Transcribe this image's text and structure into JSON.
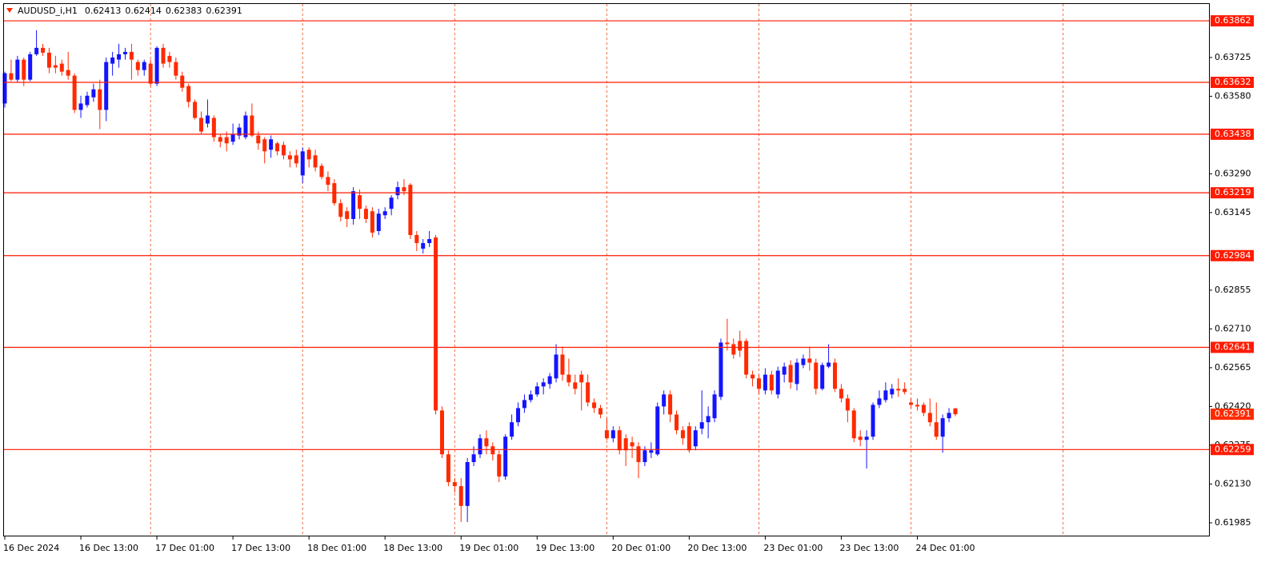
{
  "chart_data": {
    "type": "candlestick",
    "title": "AUDUSD_i,H1",
    "up_color": "#1414ff",
    "down_color": "#ff2a00",
    "level_color": "#ff1a00",
    "grid_color": "#ef6c3c",
    "grid": true,
    "ylim": [
      0.61937,
      0.63925
    ],
    "yticks": [
      0.63725,
      {
        "value": 0.6358,
        "label": "0.63580"
      },
      {
        "value": 0.6329,
        "label": "0.63290"
      },
      0.63145,
      0.62855,
      {
        "value": 0.6271,
        "label": "0.62710"
      },
      0.62565,
      {
        "value": 0.6242,
        "label": "0.62420"
      },
      0.62275,
      {
        "value": 0.6213,
        "label": "0.62130"
      },
      0.61985
    ],
    "levels": [
      0.63862,
      0.63632,
      0.63438,
      0.63219,
      0.62984,
      0.62641,
      0.62259
    ],
    "categories": [
      "16 Dec 2024",
      null,
      null,
      null,
      null,
      null,
      null,
      null,
      null,
      null,
      null,
      null,
      "16 Dec 13:00",
      null,
      null,
      null,
      null,
      null,
      null,
      null,
      null,
      null,
      null,
      null,
      "17 Dec 01:00",
      null,
      null,
      null,
      null,
      null,
      null,
      null,
      null,
      null,
      null,
      null,
      "17 Dec 13:00",
      null,
      null,
      null,
      null,
      null,
      null,
      null,
      null,
      null,
      null,
      null,
      "18 Dec 01:00",
      null,
      null,
      null,
      null,
      null,
      null,
      null,
      null,
      null,
      null,
      null,
      "18 Dec 13:00",
      null,
      null,
      null,
      null,
      null,
      null,
      null,
      null,
      null,
      null,
      null,
      "19 Dec 01:00",
      null,
      null,
      null,
      null,
      null,
      null,
      null,
      null,
      null,
      null,
      null,
      "19 Dec 13:00",
      null,
      null,
      null,
      null,
      null,
      null,
      null,
      null,
      null,
      null,
      null,
      "20 Dec 01:00",
      null,
      null,
      null,
      null,
      null,
      null,
      null,
      null,
      null,
      null,
      null,
      "20 Dec 13:00",
      null,
      null,
      null,
      null,
      null,
      null,
      null,
      null,
      null,
      null,
      null,
      "23 Dec 01:00",
      null,
      null,
      null,
      null,
      null,
      null,
      null,
      null,
      null,
      null,
      null,
      "23 Dec 13:00",
      null,
      null,
      null,
      null,
      null,
      null,
      null,
      null,
      null,
      null,
      null,
      "24 Dec 01:00",
      null,
      null,
      null,
      null,
      null,
      null
    ],
    "ohlc": [
      [
        0.63553,
        0.63672,
        0.63538,
        0.63666
      ],
      [
        0.63666,
        0.63717,
        0.63636,
        0.63642
      ],
      [
        0.63642,
        0.63731,
        0.63633,
        0.63717
      ],
      [
        0.63717,
        0.63725,
        0.63618,
        0.63642
      ],
      [
        0.63642,
        0.63746,
        0.63636,
        0.63737
      ],
      [
        0.63737,
        0.63827,
        0.63731,
        0.63761
      ],
      [
        0.63761,
        0.63776,
        0.63731,
        0.63743
      ],
      [
        0.63743,
        0.63761,
        0.63666,
        0.63687
      ],
      [
        0.63696,
        0.63731,
        0.63666,
        0.63687
      ],
      [
        0.63702,
        0.63717,
        0.63657,
        0.63672
      ],
      [
        0.63678,
        0.63746,
        0.63642,
        0.63657
      ],
      [
        0.63657,
        0.63666,
        0.63517,
        0.63529
      ],
      [
        0.63529,
        0.63582,
        0.63499,
        0.63553
      ],
      [
        0.63547,
        0.63597,
        0.63538,
        0.63582
      ],
      [
        0.63576,
        0.63627,
        0.63559,
        0.63606
      ],
      [
        0.63606,
        0.63642,
        0.63457,
        0.63529
      ],
      [
        0.63529,
        0.63725,
        0.63487,
        0.63708
      ],
      [
        0.63702,
        0.63746,
        0.63657,
        0.63725
      ],
      [
        0.63717,
        0.63776,
        0.63687,
        0.63737
      ],
      [
        0.63737,
        0.63761,
        0.63717,
        0.63746
      ],
      [
        0.63746,
        0.63776,
        0.63642,
        0.63717
      ],
      [
        0.63708,
        0.63717,
        0.63657,
        0.63678
      ],
      [
        0.63678,
        0.63717,
        0.63657,
        0.63708
      ],
      [
        0.63702,
        0.63717,
        0.63618,
        0.63627
      ],
      [
        0.63627,
        0.63767,
        0.63618,
        0.63761
      ],
      [
        0.63761,
        0.63776,
        0.63687,
        0.63702
      ],
      [
        0.63731,
        0.63746,
        0.63687,
        0.63708
      ],
      [
        0.63708,
        0.63725,
        0.63642,
        0.63657
      ],
      [
        0.63657,
        0.63672,
        0.63597,
        0.63612
      ],
      [
        0.63618,
        0.63627,
        0.63538,
        0.63559
      ],
      [
        0.63559,
        0.63568,
        0.63493,
        0.63499
      ],
      [
        0.63499,
        0.63523,
        0.63439,
        0.63448
      ],
      [
        0.63478,
        0.63568,
        0.63463,
        0.63508
      ],
      [
        0.63499,
        0.63508,
        0.6341,
        0.63427
      ],
      [
        0.63427,
        0.63439,
        0.63389,
        0.6341
      ],
      [
        0.63427,
        0.63448,
        0.63374,
        0.63404
      ],
      [
        0.6341,
        0.63478,
        0.63398,
        0.63439
      ],
      [
        0.63433,
        0.63478,
        0.63419,
        0.63463
      ],
      [
        0.63427,
        0.63523,
        0.63419,
        0.63508
      ],
      [
        0.63508,
        0.63553,
        0.63427,
        0.63433
      ],
      [
        0.63433,
        0.63448,
        0.6338,
        0.63404
      ],
      [
        0.63419,
        0.63427,
        0.63329,
        0.63374
      ],
      [
        0.6338,
        0.63433,
        0.6335,
        0.63419
      ],
      [
        0.63404,
        0.6341,
        0.63359,
        0.63374
      ],
      [
        0.63398,
        0.6341,
        0.63344,
        0.63359
      ],
      [
        0.63359,
        0.63374,
        0.63314,
        0.63344
      ],
      [
        0.63359,
        0.6338,
        0.63314,
        0.63329
      ],
      [
        0.63284,
        0.63389,
        0.63255,
        0.63374
      ],
      [
        0.6338,
        0.63389,
        0.63314,
        0.63344
      ],
      [
        0.63359,
        0.6338,
        0.63299,
        0.63314
      ],
      [
        0.6332,
        0.63329,
        0.6327,
        0.63278
      ],
      [
        0.63278,
        0.63299,
        0.63225,
        0.63249
      ],
      [
        0.63255,
        0.6327,
        0.63171,
        0.6318
      ],
      [
        0.6318,
        0.63195,
        0.63112,
        0.63129
      ],
      [
        0.6315,
        0.63165,
        0.63091,
        0.63121
      ],
      [
        0.63121,
        0.6324,
        0.631,
        0.63225
      ],
      [
        0.6321,
        0.63231,
        0.63121,
        0.63159
      ],
      [
        0.63159,
        0.63171,
        0.63106,
        0.63121
      ],
      [
        0.6315,
        0.63165,
        0.63052,
        0.6307
      ],
      [
        0.63076,
        0.63159,
        0.63061,
        0.63141
      ],
      [
        0.63135,
        0.63165,
        0.63121,
        0.6315
      ],
      [
        0.63159,
        0.6321,
        0.63135,
        0.63201
      ],
      [
        0.6321,
        0.63261,
        0.63195,
        0.6324
      ],
      [
        0.6324,
        0.6327,
        0.6321,
        0.63225
      ],
      [
        0.63249,
        0.63255,
        0.63046,
        0.63061
      ],
      [
        0.63061,
        0.63076,
        0.63001,
        0.63031
      ],
      [
        0.6301,
        0.63046,
        0.62992,
        0.63031
      ],
      [
        0.63031,
        0.63076,
        0.63016,
        0.63046
      ],
      [
        0.63052,
        0.63061,
        0.6239,
        0.62405
      ],
      [
        0.62405,
        0.6242,
        0.62227,
        0.62241
      ],
      [
        0.62241,
        0.62256,
        0.62122,
        0.62137
      ],
      [
        0.62137,
        0.62152,
        0.62098,
        0.62122
      ],
      [
        0.62122,
        0.62152,
        0.61988,
        0.62048
      ],
      [
        0.62048,
        0.62227,
        0.61988,
        0.62212
      ],
      [
        0.62212,
        0.62271,
        0.62197,
        0.62241
      ],
      [
        0.62241,
        0.62316,
        0.62227,
        0.62301
      ],
      [
        0.62301,
        0.62331,
        0.62241,
        0.62271
      ],
      [
        0.62271,
        0.62286,
        0.62218,
        0.62241
      ],
      [
        0.62241,
        0.62256,
        0.62137,
        0.62158
      ],
      [
        0.62158,
        0.62316,
        0.62146,
        0.62307
      ],
      [
        0.62307,
        0.6239,
        0.62295,
        0.62361
      ],
      [
        0.62361,
        0.62435,
        0.62346,
        0.62414
      ],
      [
        0.62414,
        0.62465,
        0.62396,
        0.62444
      ],
      [
        0.62444,
        0.6248,
        0.62435,
        0.62465
      ],
      [
        0.62465,
        0.6251,
        0.62456,
        0.62495
      ],
      [
        0.62495,
        0.62525,
        0.62465,
        0.6251
      ],
      [
        0.62504,
        0.62545,
        0.62486,
        0.62533
      ],
      [
        0.62525,
        0.62653,
        0.6251,
        0.62614
      ],
      [
        0.62614,
        0.62644,
        0.62516,
        0.62539
      ],
      [
        0.62539,
        0.62599,
        0.62495,
        0.6251
      ],
      [
        0.6251,
        0.62539,
        0.62465,
        0.62486
      ],
      [
        0.62539,
        0.62554,
        0.62405,
        0.6251
      ],
      [
        0.6251,
        0.62539,
        0.6242,
        0.62435
      ],
      [
        0.62435,
        0.6245,
        0.62396,
        0.62414
      ],
      [
        0.62414,
        0.62426,
        0.62376,
        0.6239
      ],
      [
        0.62331,
        0.62376,
        0.62295,
        0.62301
      ],
      [
        0.62301,
        0.62346,
        0.62286,
        0.62331
      ],
      [
        0.62331,
        0.62346,
        0.62241,
        0.62256
      ],
      [
        0.62301,
        0.62316,
        0.62197,
        0.62256
      ],
      [
        0.62286,
        0.62307,
        0.62227,
        0.62271
      ],
      [
        0.62271,
        0.62286,
        0.62152,
        0.62212
      ],
      [
        0.62212,
        0.62271,
        0.62197,
        0.62256
      ],
      [
        0.62247,
        0.62286,
        0.62227,
        0.62256
      ],
      [
        0.62241,
        0.62435,
        0.62235,
        0.6242
      ],
      [
        0.6242,
        0.6248,
        0.6239,
        0.62465
      ],
      [
        0.62465,
        0.6248,
        0.62361,
        0.6239
      ],
      [
        0.6239,
        0.62405,
        0.62316,
        0.62331
      ],
      [
        0.62331,
        0.62346,
        0.62277,
        0.62301
      ],
      [
        0.62346,
        0.62361,
        0.62247,
        0.62256
      ],
      [
        0.62271,
        0.62346,
        0.62256,
        0.62331
      ],
      [
        0.62337,
        0.6248,
        0.62316,
        0.62361
      ],
      [
        0.62361,
        0.6242,
        0.62301,
        0.62384
      ],
      [
        0.62376,
        0.6248,
        0.62361,
        0.62465
      ],
      [
        0.62456,
        0.62674,
        0.62444,
        0.62659
      ],
      [
        0.62659,
        0.62748,
        0.62629,
        0.62653
      ],
      [
        0.62653,
        0.62674,
        0.62599,
        0.62614
      ],
      [
        0.62665,
        0.62703,
        0.62605,
        0.62629
      ],
      [
        0.62665,
        0.62674,
        0.62525,
        0.62539
      ],
      [
        0.62539,
        0.62554,
        0.62495,
        0.62525
      ],
      [
        0.62525,
        0.62539,
        0.62465,
        0.62486
      ],
      [
        0.6248,
        0.62563,
        0.62465,
        0.62539
      ],
      [
        0.62539,
        0.62554,
        0.62465,
        0.6248
      ],
      [
        0.62465,
        0.62569,
        0.6245,
        0.62554
      ],
      [
        0.62539,
        0.62584,
        0.6251,
        0.62569
      ],
      [
        0.62575,
        0.62593,
        0.62486,
        0.6251
      ],
      [
        0.62504,
        0.62599,
        0.6248,
        0.62584
      ],
      [
        0.62575,
        0.62614,
        0.62563,
        0.62599
      ],
      [
        0.62599,
        0.62644,
        0.62554,
        0.62584
      ],
      [
        0.62584,
        0.62599,
        0.62465,
        0.62486
      ],
      [
        0.62486,
        0.62584,
        0.6248,
        0.62575
      ],
      [
        0.62569,
        0.62653,
        0.62563,
        0.62584
      ],
      [
        0.62584,
        0.62599,
        0.62474,
        0.62486
      ],
      [
        0.62486,
        0.62504,
        0.62435,
        0.6245
      ],
      [
        0.6245,
        0.62465,
        0.62361,
        0.62405
      ],
      [
        0.62405,
        0.62414,
        0.62286,
        0.62301
      ],
      [
        0.62307,
        0.62331,
        0.62271,
        0.62295
      ],
      [
        0.62295,
        0.62331,
        0.62188,
        0.62307
      ],
      [
        0.62307,
        0.62435,
        0.62295,
        0.62426
      ],
      [
        0.62426,
        0.6248,
        0.62414,
        0.6245
      ],
      [
        0.62444,
        0.6251,
        0.62435,
        0.6248
      ],
      [
        0.62465,
        0.62504,
        0.6245,
        0.62486
      ],
      [
        0.62486,
        0.62525,
        0.62456,
        0.6248
      ],
      [
        0.62486,
        0.6251,
        0.62465,
        0.62474
      ],
      [
        0.62435,
        0.6245,
        0.62414,
        0.62426
      ],
      [
        0.62426,
        0.6245,
        0.62405,
        0.6242
      ],
      [
        0.62426,
        0.62435,
        0.62384,
        0.62396
      ],
      [
        0.62396,
        0.6245,
        0.62346,
        0.62361
      ],
      [
        0.62361,
        0.62435,
        0.62295,
        0.62307
      ],
      [
        0.62307,
        0.6239,
        0.62247,
        0.62376
      ],
      [
        0.62376,
        0.62414,
        0.62361,
        0.62396
      ],
      [
        0.62413,
        0.62414,
        0.62383,
        0.62391
      ]
    ]
  }
}
